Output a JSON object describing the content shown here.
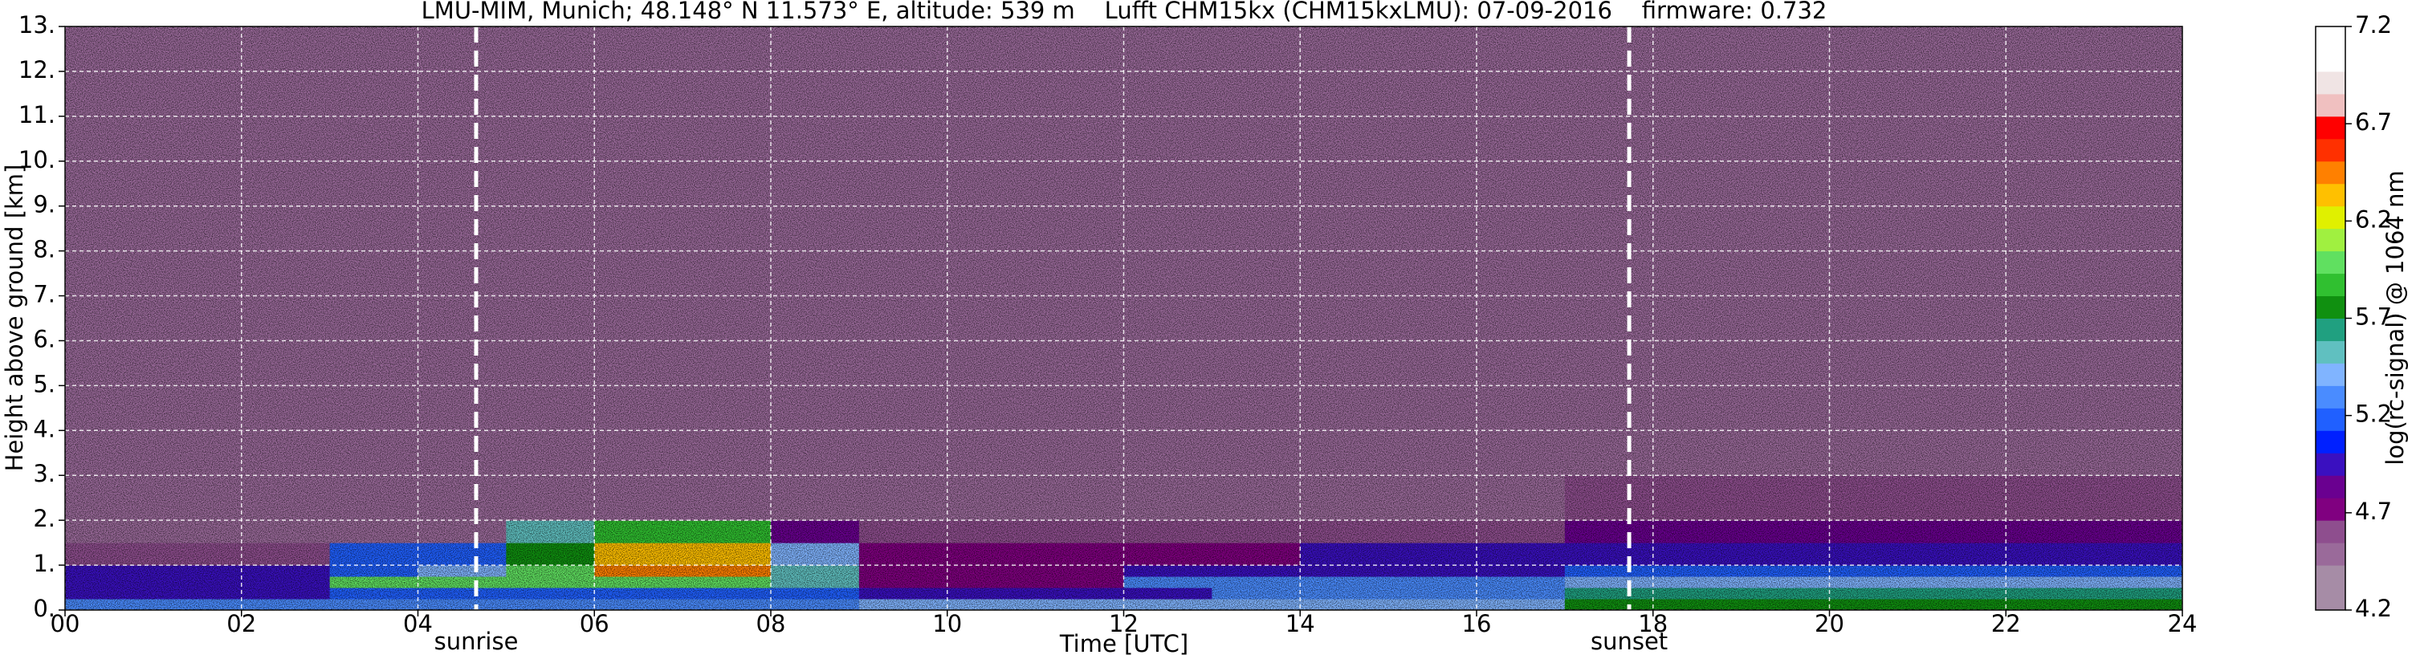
{
  "chart_data": {
    "type": "heatmap",
    "title": "LMU-MIM, Munich; 48.148° N 11.573° E, altitude: 539 m    Lufft CHM15kx (CHM15kxLMU): 07-09-2016    firmware: 0.732",
    "xlabel": "Time [UTC]",
    "ylabel": "Height above ground [km]",
    "xlim": [
      0,
      24
    ],
    "ylim": [
      0,
      13
    ],
    "xticks": [
      {
        "value": 0,
        "label": "00"
      },
      {
        "value": 2,
        "label": "02"
      },
      {
        "value": 4,
        "label": "04"
      },
      {
        "value": 6,
        "label": "06"
      },
      {
        "value": 8,
        "label": "08"
      },
      {
        "value": 10,
        "label": "10"
      },
      {
        "value": 12,
        "label": "12"
      },
      {
        "value": 14,
        "label": "14"
      },
      {
        "value": 16,
        "label": "16"
      },
      {
        "value": 18,
        "label": "18"
      },
      {
        "value": 20,
        "label": "20"
      },
      {
        "value": 22,
        "label": "22"
      },
      {
        "value": 24,
        "label": "24"
      }
    ],
    "yticks": [
      {
        "value": 0,
        "label": "0."
      },
      {
        "value": 1,
        "label": "1."
      },
      {
        "value": 2,
        "label": "2."
      },
      {
        "value": 3,
        "label": "3."
      },
      {
        "value": 4,
        "label": "4."
      },
      {
        "value": 5,
        "label": "5."
      },
      {
        "value": 6,
        "label": "6."
      },
      {
        "value": 7,
        "label": "7."
      },
      {
        "value": 8,
        "label": "8."
      },
      {
        "value": 9,
        "label": "9."
      },
      {
        "value": 10,
        "label": "10."
      },
      {
        "value": 11,
        "label": "11."
      },
      {
        "value": 12,
        "label": "12."
      },
      {
        "value": 13,
        "label": "13."
      }
    ],
    "grid": true,
    "x_edges": [
      0,
      1,
      2,
      3,
      4,
      5,
      6,
      7,
      8,
      9,
      10,
      11,
      12,
      13,
      14,
      15,
      16,
      17,
      18,
      19,
      20,
      21,
      22,
      23,
      24
    ],
    "y_edges": [
      0,
      0.25,
      0.5,
      0.75,
      1,
      1.5,
      2,
      3,
      13
    ],
    "z": [
      [
        5.3,
        5.3,
        5.3,
        5.3,
        5.3,
        5.3,
        5.3,
        5.3,
        5.3,
        5.4,
        5.4,
        5.4,
        5.4,
        5.4,
        5.4,
        5.4,
        5.4,
        5.7,
        5.7,
        5.7,
        5.7,
        5.7,
        5.7,
        5.7
      ],
      [
        5.0,
        5.0,
        5.0,
        5.2,
        5.2,
        5.2,
        5.2,
        5.2,
        5.2,
        4.9,
        4.9,
        4.9,
        4.9,
        5.3,
        5.3,
        5.3,
        5.3,
        5.6,
        5.6,
        5.6,
        5.6,
        5.6,
        5.6,
        5.6
      ],
      [
        4.9,
        4.9,
        4.9,
        6.0,
        6.0,
        6.0,
        6.0,
        6.0,
        5.5,
        4.7,
        4.7,
        4.7,
        5.3,
        5.3,
        5.3,
        5.3,
        5.3,
        5.4,
        5.4,
        5.4,
        5.4,
        5.4,
        5.4,
        5.4
      ],
      [
        4.9,
        4.9,
        4.9,
        5.2,
        5.4,
        6.0,
        6.5,
        6.5,
        5.5,
        4.7,
        4.7,
        4.7,
        5.0,
        5.0,
        5.0,
        5.0,
        5.0,
        5.2,
        5.2,
        5.2,
        5.2,
        5.2,
        5.2,
        5.2
      ],
      [
        4.6,
        4.6,
        4.6,
        5.2,
        5.2,
        5.8,
        6.3,
        6.3,
        5.4,
        4.7,
        4.7,
        4.7,
        4.7,
        4.7,
        4.9,
        4.9,
        4.9,
        5.0,
        5.0,
        5.0,
        5.0,
        5.0,
        5.0,
        5.0
      ],
      [
        4.5,
        4.5,
        4.5,
        4.5,
        4.5,
        5.5,
        5.9,
        5.9,
        4.8,
        4.6,
        4.6,
        4.6,
        4.6,
        4.6,
        4.6,
        4.6,
        4.6,
        4.8,
        4.8,
        4.8,
        4.8,
        4.8,
        4.8,
        4.8
      ],
      [
        4.5,
        4.5,
        4.5,
        4.5,
        4.5,
        4.5,
        4.5,
        4.5,
        4.5,
        4.5,
        4.5,
        4.5,
        4.5,
        4.5,
        4.5,
        4.5,
        4.5,
        4.6,
        4.6,
        4.6,
        4.6,
        4.6,
        4.6,
        4.6
      ],
      [
        4.5,
        4.5,
        4.5,
        4.5,
        4.5,
        4.5,
        4.5,
        4.5,
        4.5,
        4.5,
        4.5,
        4.5,
        4.5,
        4.5,
        4.5,
        4.5,
        4.5,
        4.5,
        4.5,
        4.5,
        4.5,
        4.5,
        4.5,
        4.5
      ]
    ],
    "annotations": [
      {
        "x": 4.66,
        "text": "sunrise"
      },
      {
        "x": 17.73,
        "text": "sunset"
      }
    ],
    "colorbar": {
      "label": "log(rc-signal) @ 1064 nm",
      "clim": [
        4.2,
        7.2
      ],
      "ticks": [
        4.2,
        4.7,
        5.2,
        5.7,
        6.2,
        6.7,
        7.2
      ],
      "colors": [
        "#a68ca6",
        "#a68ca6",
        "#9a6a9a",
        "#8e4e8e",
        "#800080",
        "#6a0090",
        "#3a10c0",
        "#0020ff",
        "#2060ff",
        "#4a8cff",
        "#80b4ff",
        "#60c0c0",
        "#20a080",
        "#109010",
        "#30c030",
        "#60e060",
        "#a0f040",
        "#e0f000",
        "#ffc000",
        "#ff8000",
        "#ff3000",
        "#ff0000",
        "#f0c0c0",
        "#f0e4e4",
        "#ffffff",
        "#ffffff"
      ]
    }
  }
}
